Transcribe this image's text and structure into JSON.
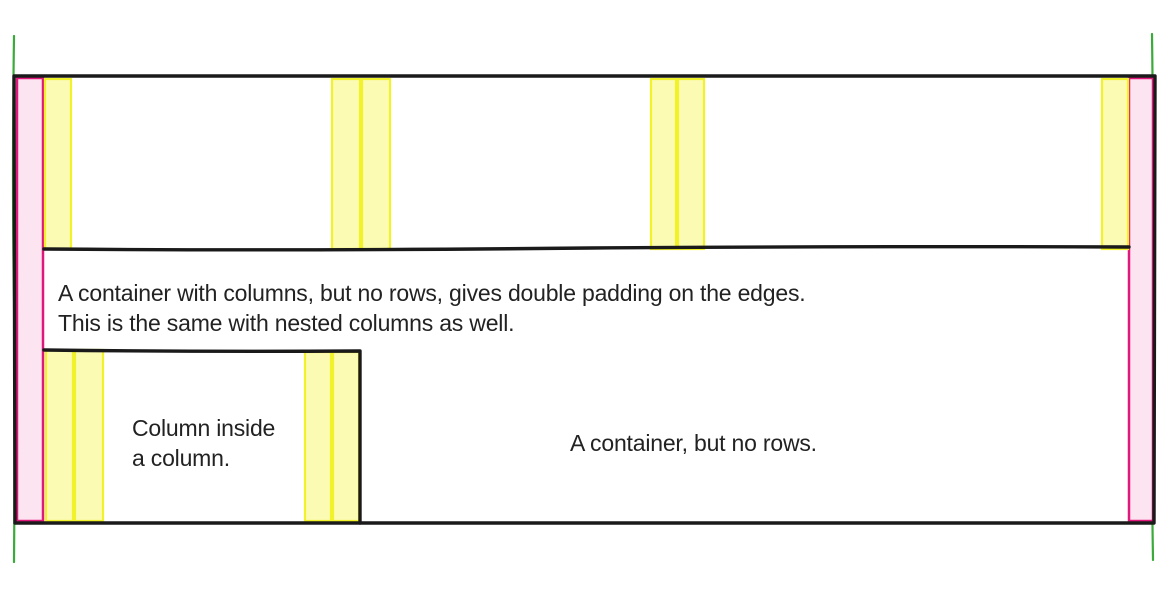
{
  "colors": {
    "container_border": "#1a1a1a",
    "column_padding_fill": "#fbfbb4",
    "column_padding_stroke": "#f2f22a",
    "container_padding_fill": "#fde4f1",
    "container_padding_stroke": "#e0187c",
    "page_edge_guide": "#3aaa3a",
    "text": "#222222"
  },
  "annotations": {
    "container_columns_note": {
      "line1": "A container with columns, but no rows, gives double padding on the edges.",
      "line2": "This is the same with nested columns as well."
    },
    "nested_column_note": {
      "line1": "Column inside",
      "line2": "a column."
    },
    "container_no_rows_note": "A container, but no rows."
  }
}
